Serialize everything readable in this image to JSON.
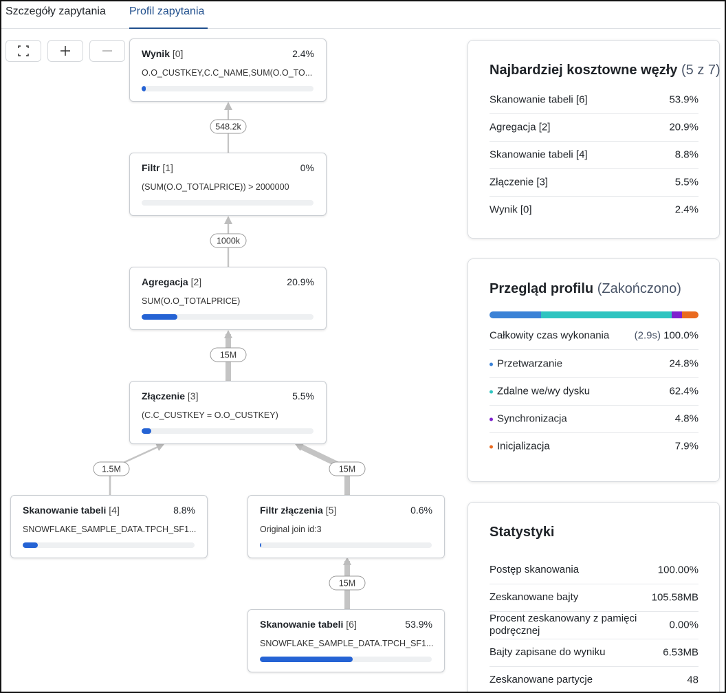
{
  "tabs": [
    "Szczegóły zapytania",
    "Profil zapytania"
  ],
  "nodes": [
    {
      "name": "Wynik",
      "id": "[0]",
      "cost": {
        "value": 2.4,
        "label": "2.4%"
      },
      "detail": "O.O_CUSTKEY,C.C_NAME,SUM(O.O_TO..."
    },
    {
      "name": "Filtr",
      "id": "[1]",
      "cost": {
        "value": 0,
        "label": "0%"
      },
      "detail": "(SUM(O.O_TOTALPRICE)) > 2000000"
    },
    {
      "name": "Agregacja",
      "id": "[2]",
      "cost": {
        "value": 20.9,
        "label": "20.9%"
      },
      "detail": "SUM(O.O_TOTALPRICE)"
    },
    {
      "name": "Złączenie",
      "id": "[3]",
      "cost": {
        "value": 5.5,
        "label": "5.5%"
      },
      "detail": "(C.C_CUSTKEY = O.O_CUSTKEY)"
    },
    {
      "name": "Skanowanie tabeli",
      "id": "[4]",
      "cost": {
        "value": 8.8,
        "label": "8.8%"
      },
      "detail": "SNOWFLAKE_SAMPLE_DATA.TPCH_SF1..."
    },
    {
      "name": "Filtr złączenia",
      "id": "[5]",
      "cost": {
        "value": 0.6,
        "label": "0.6%"
      },
      "detail": "Original join id:3"
    },
    {
      "name": "Skanowanie tabeli",
      "id": "[6]",
      "cost": {
        "value": 53.9,
        "label": "53.9%"
      },
      "detail": "SNOWFLAKE_SAMPLE_DATA.TPCH_SF1..."
    }
  ],
  "edges": [
    {
      "rows": {
        "value": 548200,
        "label": "548.2k"
      }
    },
    {
      "rows": {
        "value": 1000000,
        "label": "1000k"
      }
    },
    {
      "rows": {
        "value": 15000000,
        "label": "15M"
      }
    },
    {
      "rows": {
        "value": 1500000,
        "label": "1.5M"
      }
    },
    {
      "rows": {
        "value": 15000000,
        "label": "15M"
      }
    },
    {
      "rows": {
        "value": 15000000,
        "label": "15M"
      }
    }
  ],
  "costly": {
    "title": "Najbardziej kosztowne węzły",
    "count": "(5 z 7)",
    "rows": [
      [
        "Skanowanie tabeli [6]",
        "53.9%"
      ],
      [
        "Agregacja [2]",
        "20.9%"
      ],
      [
        "Skanowanie tabeli [4]",
        "8.8%"
      ],
      [
        "Złączenie [3]",
        "5.5%"
      ],
      [
        "Wynik [0]",
        "2.4%"
      ]
    ]
  },
  "profile": {
    "title": "Przegląd profilu",
    "status": "(Zakończono)",
    "total_label": "Całkowity czas wykonania",
    "total_time": "(2.9s)",
    "total_pct": "100.0%",
    "segments": [
      {
        "name": "Przetwarzanie",
        "color": "#3b82d6",
        "value": {
          "value": 24.8,
          "label": "24.8%"
        }
      },
      {
        "name": "Zdalne we/wy dysku",
        "color": "#2ec4c0",
        "value": {
          "value": 62.4,
          "label": "62.4%"
        }
      },
      {
        "name": "Synchronizacja",
        "color": "#7e22ce",
        "value": {
          "value": 4.8,
          "label": "4.8%"
        }
      },
      {
        "name": "Inicjalizacja",
        "color": "#ea6a1f",
        "value": {
          "value": 7.9,
          "label": "7.9%"
        }
      }
    ]
  },
  "stats": {
    "title": "Statystyki",
    "rows": [
      [
        "Postęp skanowania",
        "100.00%"
      ],
      [
        "Zeskanowane bajty",
        "105.58MB"
      ],
      [
        "Procent zeskanowany z pamięci podręcznej",
        "0.00%"
      ],
      [
        "Bajty zapisane do wyniku",
        "6.53MB"
      ],
      [
        "Zeskanowane partycje",
        "48"
      ]
    ]
  }
}
